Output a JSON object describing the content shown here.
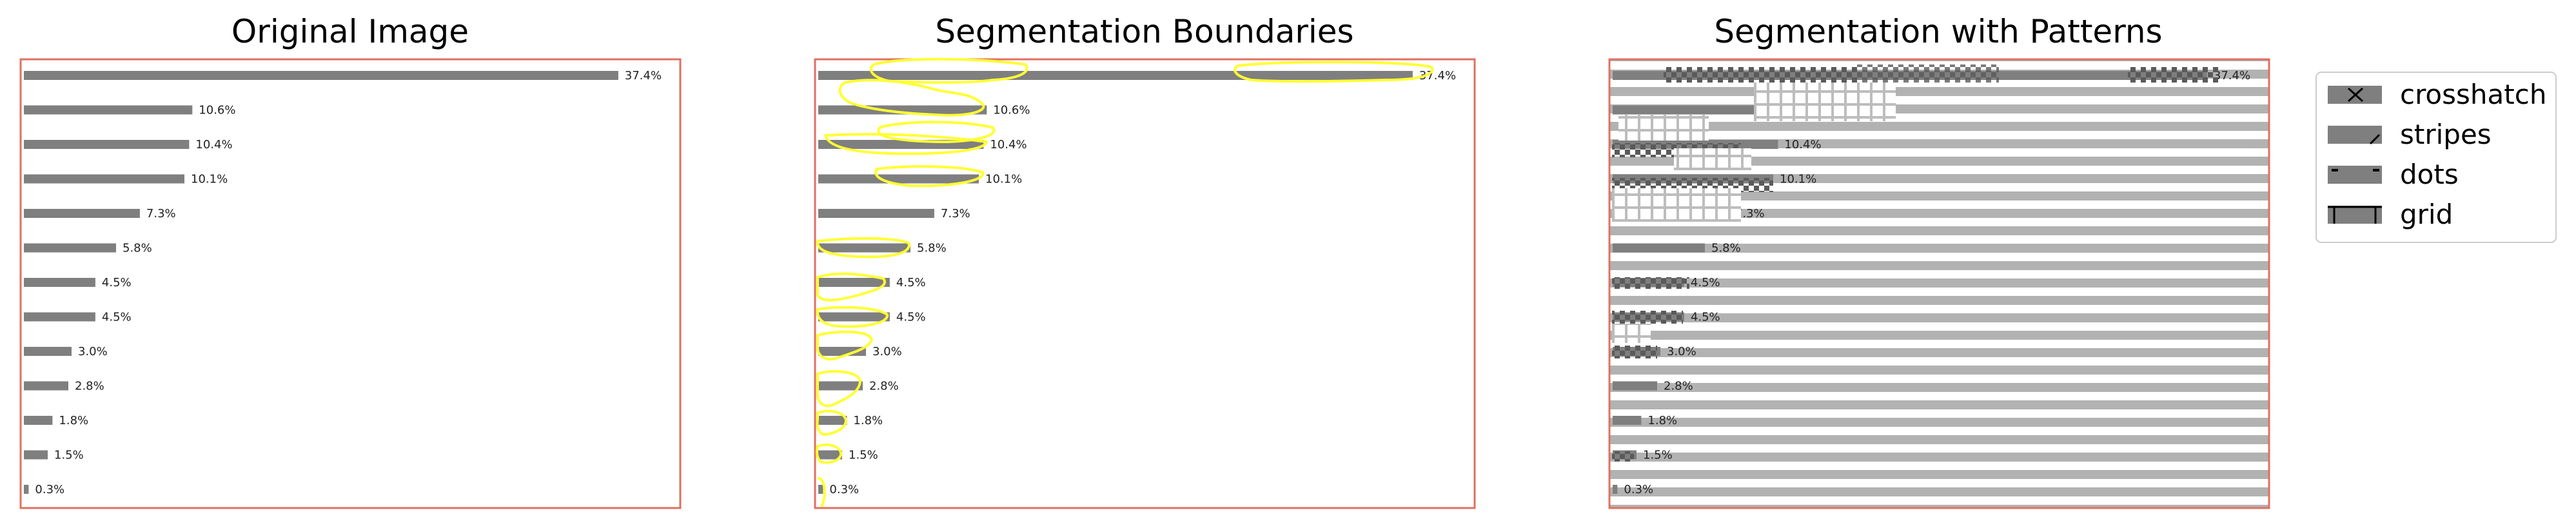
{
  "panels": [
    {
      "title": "Original Image",
      "variant": "original"
    },
    {
      "title": "Segmentation Boundaries",
      "variant": "boundaries"
    },
    {
      "title": "Segmentation with Patterns",
      "variant": "patterns"
    }
  ],
  "legend": [
    {
      "label": "crosshatch",
      "pattern": "crosshatch"
    },
    {
      "label": "stripes",
      "pattern": "stripes"
    },
    {
      "label": "dots",
      "pattern": "dots"
    },
    {
      "label": "grid",
      "pattern": "grid"
    }
  ],
  "colors": {
    "bar": "#7f7f7f",
    "frame": "#e07060",
    "boundary": "#ffff33",
    "stripe_bg": "#b2b2b2",
    "legend_border": "#cccccc"
  },
  "chart_data": {
    "type": "bar",
    "orientation": "horizontal",
    "values": [
      37.4,
      10.6,
      10.4,
      10.1,
      7.3,
      5.8,
      4.5,
      4.5,
      3.0,
      2.8,
      1.8,
      1.5,
      0.3
    ],
    "data_labels": [
      "37.4%",
      "10.6%",
      "10.4%",
      "10.1%",
      "7.3%",
      "5.8%",
      "4.5%",
      "4.5%",
      "3.0%",
      "2.8%",
      "1.8%",
      "1.5%",
      "0.3%"
    ],
    "xlim": [
      0,
      41.5
    ],
    "grid": false
  }
}
